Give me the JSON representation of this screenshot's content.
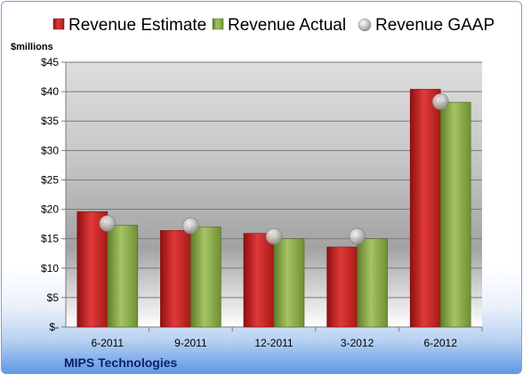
{
  "chart_data": {
    "type": "bar",
    "company": "MIPS Technologies",
    "ylabel": "$millions",
    "ylim": [
      0,
      45
    ],
    "ytick_step": 5,
    "y_tick_labels": [
      "$-",
      "$5",
      "$10",
      "$15",
      "$20",
      "$25",
      "$30",
      "$35",
      "$40",
      "$45"
    ],
    "categories": [
      "6-2011",
      "9-2011",
      "12-2011",
      "3-2012",
      "6-2012"
    ],
    "series": [
      {
        "name": "Revenue Estimate",
        "type": "bar",
        "color": "#cc1f1f",
        "values": [
          19.6,
          16.4,
          15.9,
          13.6,
          40.4
        ]
      },
      {
        "name": "Revenue Actual",
        "type": "bar",
        "color": "#8aac45",
        "values": [
          17.3,
          17.0,
          15.0,
          15.0,
          38.2
        ]
      },
      {
        "name": "Revenue GAAP",
        "type": "marker",
        "color": "#b8b8b8",
        "values": [
          17.6,
          17.2,
          15.4,
          15.4,
          38.3
        ]
      }
    ],
    "grid": true,
    "legend_position": "top"
  }
}
